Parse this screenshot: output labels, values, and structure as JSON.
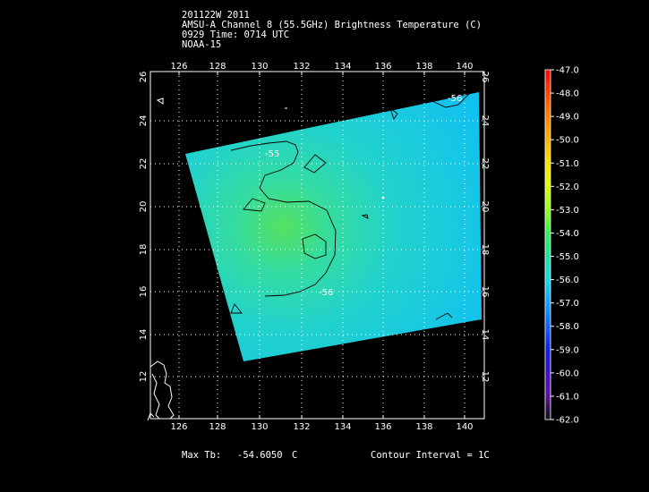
{
  "header": {
    "line1": "201122W 2011",
    "line2": "AMSU-A Channel 8 (55.5GHz) Brightness Temperature (C)",
    "line3": "0929 Time: 0714 UTC",
    "line4": "NOAA-15"
  },
  "footer": {
    "max_tb_label": "Max Tb:",
    "max_tb_value": "-54.6050",
    "max_tb_unit": "C",
    "contour_interval": "Contour Interval = 1C"
  },
  "map": {
    "lon_ticks": [
      "126",
      "128",
      "130",
      "132",
      "134",
      "136",
      "138",
      "140"
    ],
    "lat_ticks": [
      "12",
      "14",
      "16",
      "18",
      "20",
      "22",
      "24",
      "26"
    ],
    "contour_labels": [
      "-55",
      "-56",
      "-56"
    ]
  },
  "colorbar": {
    "labels": [
      "-47.0",
      "-48.0",
      "-49.0",
      "-50.0",
      "-51.0",
      "-52.0",
      "-53.0",
      "-54.0",
      "-55.0",
      "-56.0",
      "-57.0",
      "-58.0",
      "-59.0",
      "-60.0",
      "-61.0",
      "-62.0"
    ],
    "colors": [
      "#ff0000",
      "#ff4400",
      "#ff8000",
      "#ffb000",
      "#ffe000",
      "#d8ff00",
      "#90ff20",
      "#30f050",
      "#20e0a0",
      "#18d8e0",
      "#10a0ff",
      "#1060ff",
      "#1020e0",
      "#4010c0",
      "#6010a0",
      "#101010"
    ]
  }
}
